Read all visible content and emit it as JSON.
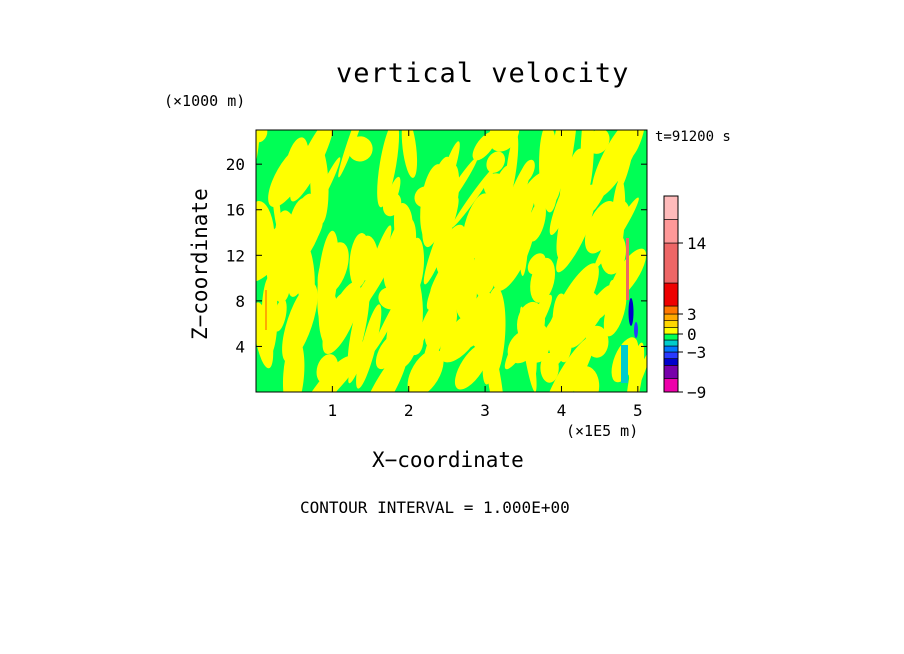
{
  "chart_data": {
    "type": "heatmap",
    "title": "vertical velocity",
    "time_label": "t=91200 s",
    "xlabel": "X−coordinate",
    "ylabel": "Z−coordinate",
    "x_unit_label": "(×1E5 m)",
    "z_unit_label": "(×1000 m)",
    "x_ticks": [
      1,
      2,
      3,
      4,
      5
    ],
    "y_ticks": [
      4,
      8,
      12,
      16,
      20
    ],
    "xlim": [
      0,
      5.12
    ],
    "ylim": [
      0,
      23
    ],
    "contour_interval_label": "CONTOUR INTERVAL = 1.000E+00",
    "colorbar": {
      "tick_labels": [
        "14",
        "3",
        "0",
        "−3",
        "−9"
      ],
      "tick_values": [
        14,
        3,
        0,
        -3,
        -9
      ],
      "levels": [
        {
          "from": -9,
          "to": -7,
          "color": "#ee00aa"
        },
        {
          "from": -7,
          "to": -5,
          "color": "#7700aa"
        },
        {
          "from": -5,
          "to": -4,
          "color": "#0000cc"
        },
        {
          "from": -4,
          "to": -3,
          "color": "#2a3aff"
        },
        {
          "from": -3,
          "to": -2,
          "color": "#0077ff"
        },
        {
          "from": -2,
          "to": -1,
          "color": "#00cccc"
        },
        {
          "from": -1,
          "to": 0,
          "color": "#00ff55"
        },
        {
          "from": 0,
          "to": 1,
          "color": "#ffff00"
        },
        {
          "from": 1,
          "to": 2,
          "color": "#ffd700"
        },
        {
          "from": 2,
          "to": 3,
          "color": "#ffaa00"
        },
        {
          "from": 3,
          "to": 4,
          "color": "#ff7700"
        },
        {
          "from": 4,
          "to": 7,
          "color": "#ee0000"
        },
        {
          "from": 7,
          "to": 14,
          "color": "#ee6666"
        },
        {
          "from": 14,
          "to": 17,
          "color": "#ff9999"
        },
        {
          "from": 17,
          "to": 20,
          "color": "#ffbbbb"
        }
      ]
    },
    "field_colors": {
      "background": "#00ff55",
      "positive": "#ffff00"
    }
  }
}
